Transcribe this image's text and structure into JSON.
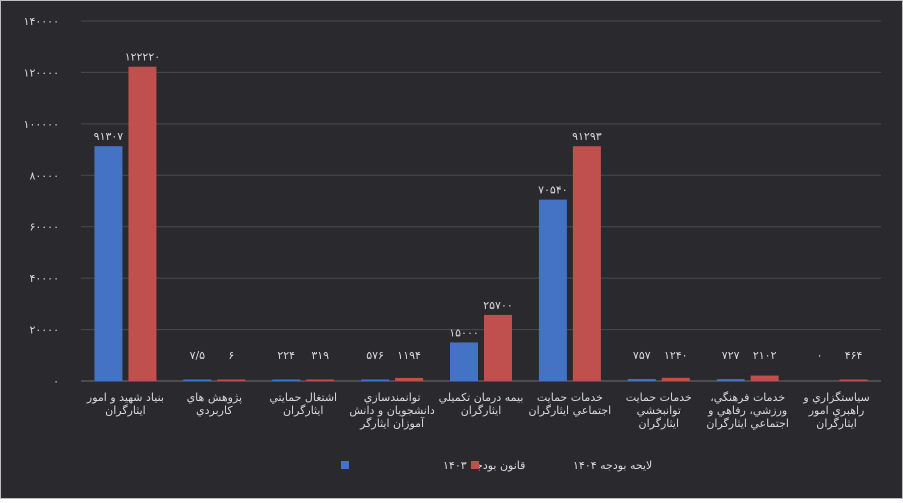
{
  "chart_data": {
    "type": "bar",
    "title": "",
    "xlabel": "",
    "ylabel": "",
    "ylim": [
      0,
      140000
    ],
    "y_ticks": [
      {
        "value": 0,
        "label": "۰"
      },
      {
        "value": 20000,
        "label": "۲۰۰۰۰"
      },
      {
        "value": 40000,
        "label": "۴۰۰۰۰"
      },
      {
        "value": 60000,
        "label": "۶۰۰۰۰"
      },
      {
        "value": 80000,
        "label": "۸۰۰۰۰"
      },
      {
        "value": 100000,
        "label": "۱۰۰۰۰۰"
      },
      {
        "value": 120000,
        "label": "۱۲۰۰۰۰"
      },
      {
        "value": 140000,
        "label": "۱۴۰۰۰۰"
      }
    ],
    "grid": true,
    "legend_position": "bottom",
    "categories": [
      [
        "بنياد شهيد و امور",
        "ايثارگران"
      ],
      [
        "پژوهش هاي",
        "کاربردي"
      ],
      [
        "اشتغال حمايتي",
        "ايثارگران"
      ],
      [
        "توانمندسازي",
        "دانشجويان و دانش",
        "آموزان ايثارگر"
      ],
      [
        "بيمه درمان تکميلي",
        "ايثارگران"
      ],
      [
        "خدمات حمايت",
        "اجتماعي ايثارگران"
      ],
      [
        "خدمات حمايت",
        "توانبخشي",
        "ايثارگران"
      ],
      [
        "خدمات فرهنگي،",
        "ورزشي، رفاهي و",
        "اجتماعي ايثارگران"
      ],
      [
        "سياستگزاري و",
        "راهبري امور",
        "ايثارگران"
      ]
    ],
    "series": [
      {
        "name": "قانون بودجه ۱۴۰۳",
        "color": "#4472c4",
        "values": [
          91307,
          7.5,
          224,
          576,
          15000,
          70540,
          757,
          727,
          0
        ],
        "labels": [
          "۹۱۳۰۷",
          "۷/۵",
          "۲۲۴",
          "۵۷۶",
          "۱۵۰۰۰",
          "۷۰۵۴۰",
          "۷۵۷",
          "۷۲۷",
          "۰"
        ]
      },
      {
        "name": "لايحه بودجه ۱۴۰۴",
        "color": "#c0504d",
        "values": [
          122220,
          6,
          319,
          1194,
          25700,
          91293,
          1240,
          2102,
          464
        ],
        "labels": [
          "۱۲۲۲۲۰",
          "۶",
          "۳۱۹",
          "۱۱۹۴",
          "۲۵۷۰۰",
          "۹۱۲۹۳",
          "۱۲۴۰",
          "۲۱۰۲",
          "۴۶۴"
        ]
      }
    ]
  }
}
